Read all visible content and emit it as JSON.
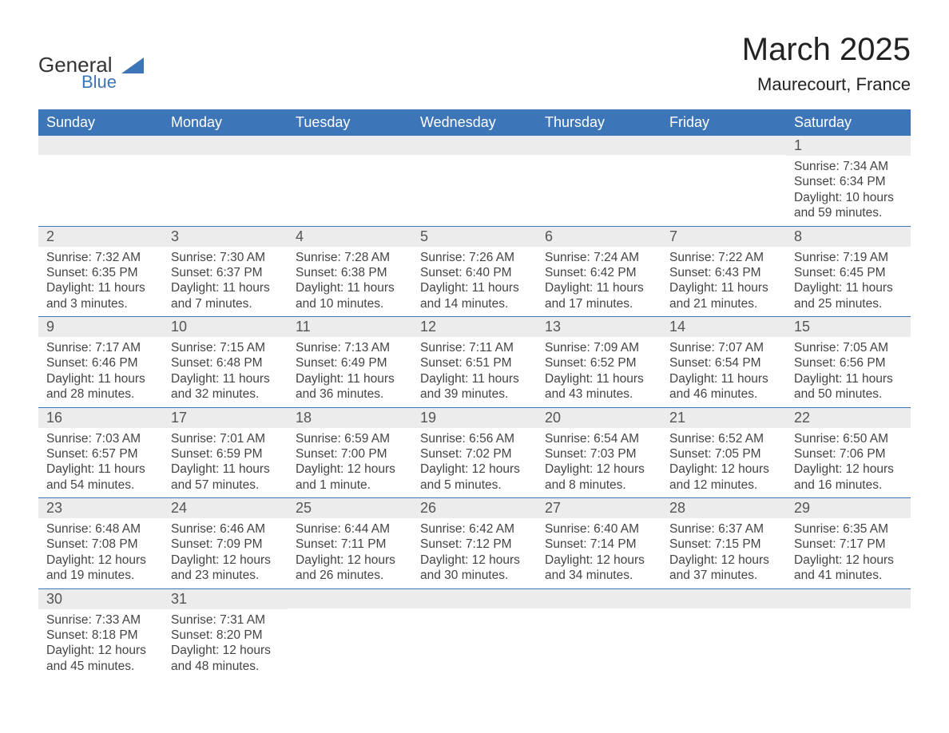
{
  "brand": {
    "word1": "General",
    "word2": "Blue",
    "word1_color": "#333333",
    "word2_color": "#3d76b8",
    "triangle_color": "#3d76b8"
  },
  "title": "March 2025",
  "location": "Maurecourt, France",
  "header_bg": "#3d76b8",
  "header_text_color": "#ffffff",
  "daynum_bg": "#ececec",
  "row_border_color": "#3d76b8",
  "body_text_color": "#444444",
  "weekdays": [
    "Sunday",
    "Monday",
    "Tuesday",
    "Wednesday",
    "Thursday",
    "Friday",
    "Saturday"
  ],
  "weeks": [
    [
      null,
      null,
      null,
      null,
      null,
      null,
      {
        "n": "1",
        "sr": "Sunrise: 7:34 AM",
        "ss": "Sunset: 6:34 PM",
        "d1": "Daylight: 10 hours",
        "d2": "and 59 minutes."
      }
    ],
    [
      {
        "n": "2",
        "sr": "Sunrise: 7:32 AM",
        "ss": "Sunset: 6:35 PM",
        "d1": "Daylight: 11 hours",
        "d2": "and 3 minutes."
      },
      {
        "n": "3",
        "sr": "Sunrise: 7:30 AM",
        "ss": "Sunset: 6:37 PM",
        "d1": "Daylight: 11 hours",
        "d2": "and 7 minutes."
      },
      {
        "n": "4",
        "sr": "Sunrise: 7:28 AM",
        "ss": "Sunset: 6:38 PM",
        "d1": "Daylight: 11 hours",
        "d2": "and 10 minutes."
      },
      {
        "n": "5",
        "sr": "Sunrise: 7:26 AM",
        "ss": "Sunset: 6:40 PM",
        "d1": "Daylight: 11 hours",
        "d2": "and 14 minutes."
      },
      {
        "n": "6",
        "sr": "Sunrise: 7:24 AM",
        "ss": "Sunset: 6:42 PM",
        "d1": "Daylight: 11 hours",
        "d2": "and 17 minutes."
      },
      {
        "n": "7",
        "sr": "Sunrise: 7:22 AM",
        "ss": "Sunset: 6:43 PM",
        "d1": "Daylight: 11 hours",
        "d2": "and 21 minutes."
      },
      {
        "n": "8",
        "sr": "Sunrise: 7:19 AM",
        "ss": "Sunset: 6:45 PM",
        "d1": "Daylight: 11 hours",
        "d2": "and 25 minutes."
      }
    ],
    [
      {
        "n": "9",
        "sr": "Sunrise: 7:17 AM",
        "ss": "Sunset: 6:46 PM",
        "d1": "Daylight: 11 hours",
        "d2": "and 28 minutes."
      },
      {
        "n": "10",
        "sr": "Sunrise: 7:15 AM",
        "ss": "Sunset: 6:48 PM",
        "d1": "Daylight: 11 hours",
        "d2": "and 32 minutes."
      },
      {
        "n": "11",
        "sr": "Sunrise: 7:13 AM",
        "ss": "Sunset: 6:49 PM",
        "d1": "Daylight: 11 hours",
        "d2": "and 36 minutes."
      },
      {
        "n": "12",
        "sr": "Sunrise: 7:11 AM",
        "ss": "Sunset: 6:51 PM",
        "d1": "Daylight: 11 hours",
        "d2": "and 39 minutes."
      },
      {
        "n": "13",
        "sr": "Sunrise: 7:09 AM",
        "ss": "Sunset: 6:52 PM",
        "d1": "Daylight: 11 hours",
        "d2": "and 43 minutes."
      },
      {
        "n": "14",
        "sr": "Sunrise: 7:07 AM",
        "ss": "Sunset: 6:54 PM",
        "d1": "Daylight: 11 hours",
        "d2": "and 46 minutes."
      },
      {
        "n": "15",
        "sr": "Sunrise: 7:05 AM",
        "ss": "Sunset: 6:56 PM",
        "d1": "Daylight: 11 hours",
        "d2": "and 50 minutes."
      }
    ],
    [
      {
        "n": "16",
        "sr": "Sunrise: 7:03 AM",
        "ss": "Sunset: 6:57 PM",
        "d1": "Daylight: 11 hours",
        "d2": "and 54 minutes."
      },
      {
        "n": "17",
        "sr": "Sunrise: 7:01 AM",
        "ss": "Sunset: 6:59 PM",
        "d1": "Daylight: 11 hours",
        "d2": "and 57 minutes."
      },
      {
        "n": "18",
        "sr": "Sunrise: 6:59 AM",
        "ss": "Sunset: 7:00 PM",
        "d1": "Daylight: 12 hours",
        "d2": "and 1 minute."
      },
      {
        "n": "19",
        "sr": "Sunrise: 6:56 AM",
        "ss": "Sunset: 7:02 PM",
        "d1": "Daylight: 12 hours",
        "d2": "and 5 minutes."
      },
      {
        "n": "20",
        "sr": "Sunrise: 6:54 AM",
        "ss": "Sunset: 7:03 PM",
        "d1": "Daylight: 12 hours",
        "d2": "and 8 minutes."
      },
      {
        "n": "21",
        "sr": "Sunrise: 6:52 AM",
        "ss": "Sunset: 7:05 PM",
        "d1": "Daylight: 12 hours",
        "d2": "and 12 minutes."
      },
      {
        "n": "22",
        "sr": "Sunrise: 6:50 AM",
        "ss": "Sunset: 7:06 PM",
        "d1": "Daylight: 12 hours",
        "d2": "and 16 minutes."
      }
    ],
    [
      {
        "n": "23",
        "sr": "Sunrise: 6:48 AM",
        "ss": "Sunset: 7:08 PM",
        "d1": "Daylight: 12 hours",
        "d2": "and 19 minutes."
      },
      {
        "n": "24",
        "sr": "Sunrise: 6:46 AM",
        "ss": "Sunset: 7:09 PM",
        "d1": "Daylight: 12 hours",
        "d2": "and 23 minutes."
      },
      {
        "n": "25",
        "sr": "Sunrise: 6:44 AM",
        "ss": "Sunset: 7:11 PM",
        "d1": "Daylight: 12 hours",
        "d2": "and 26 minutes."
      },
      {
        "n": "26",
        "sr": "Sunrise: 6:42 AM",
        "ss": "Sunset: 7:12 PM",
        "d1": "Daylight: 12 hours",
        "d2": "and 30 minutes."
      },
      {
        "n": "27",
        "sr": "Sunrise: 6:40 AM",
        "ss": "Sunset: 7:14 PM",
        "d1": "Daylight: 12 hours",
        "d2": "and 34 minutes."
      },
      {
        "n": "28",
        "sr": "Sunrise: 6:37 AM",
        "ss": "Sunset: 7:15 PM",
        "d1": "Daylight: 12 hours",
        "d2": "and 37 minutes."
      },
      {
        "n": "29",
        "sr": "Sunrise: 6:35 AM",
        "ss": "Sunset: 7:17 PM",
        "d1": "Daylight: 12 hours",
        "d2": "and 41 minutes."
      }
    ],
    [
      {
        "n": "30",
        "sr": "Sunrise: 7:33 AM",
        "ss": "Sunset: 8:18 PM",
        "d1": "Daylight: 12 hours",
        "d2": "and 45 minutes."
      },
      {
        "n": "31",
        "sr": "Sunrise: 7:31 AM",
        "ss": "Sunset: 8:20 PM",
        "d1": "Daylight: 12 hours",
        "d2": "and 48 minutes."
      },
      null,
      null,
      null,
      null,
      null
    ]
  ]
}
